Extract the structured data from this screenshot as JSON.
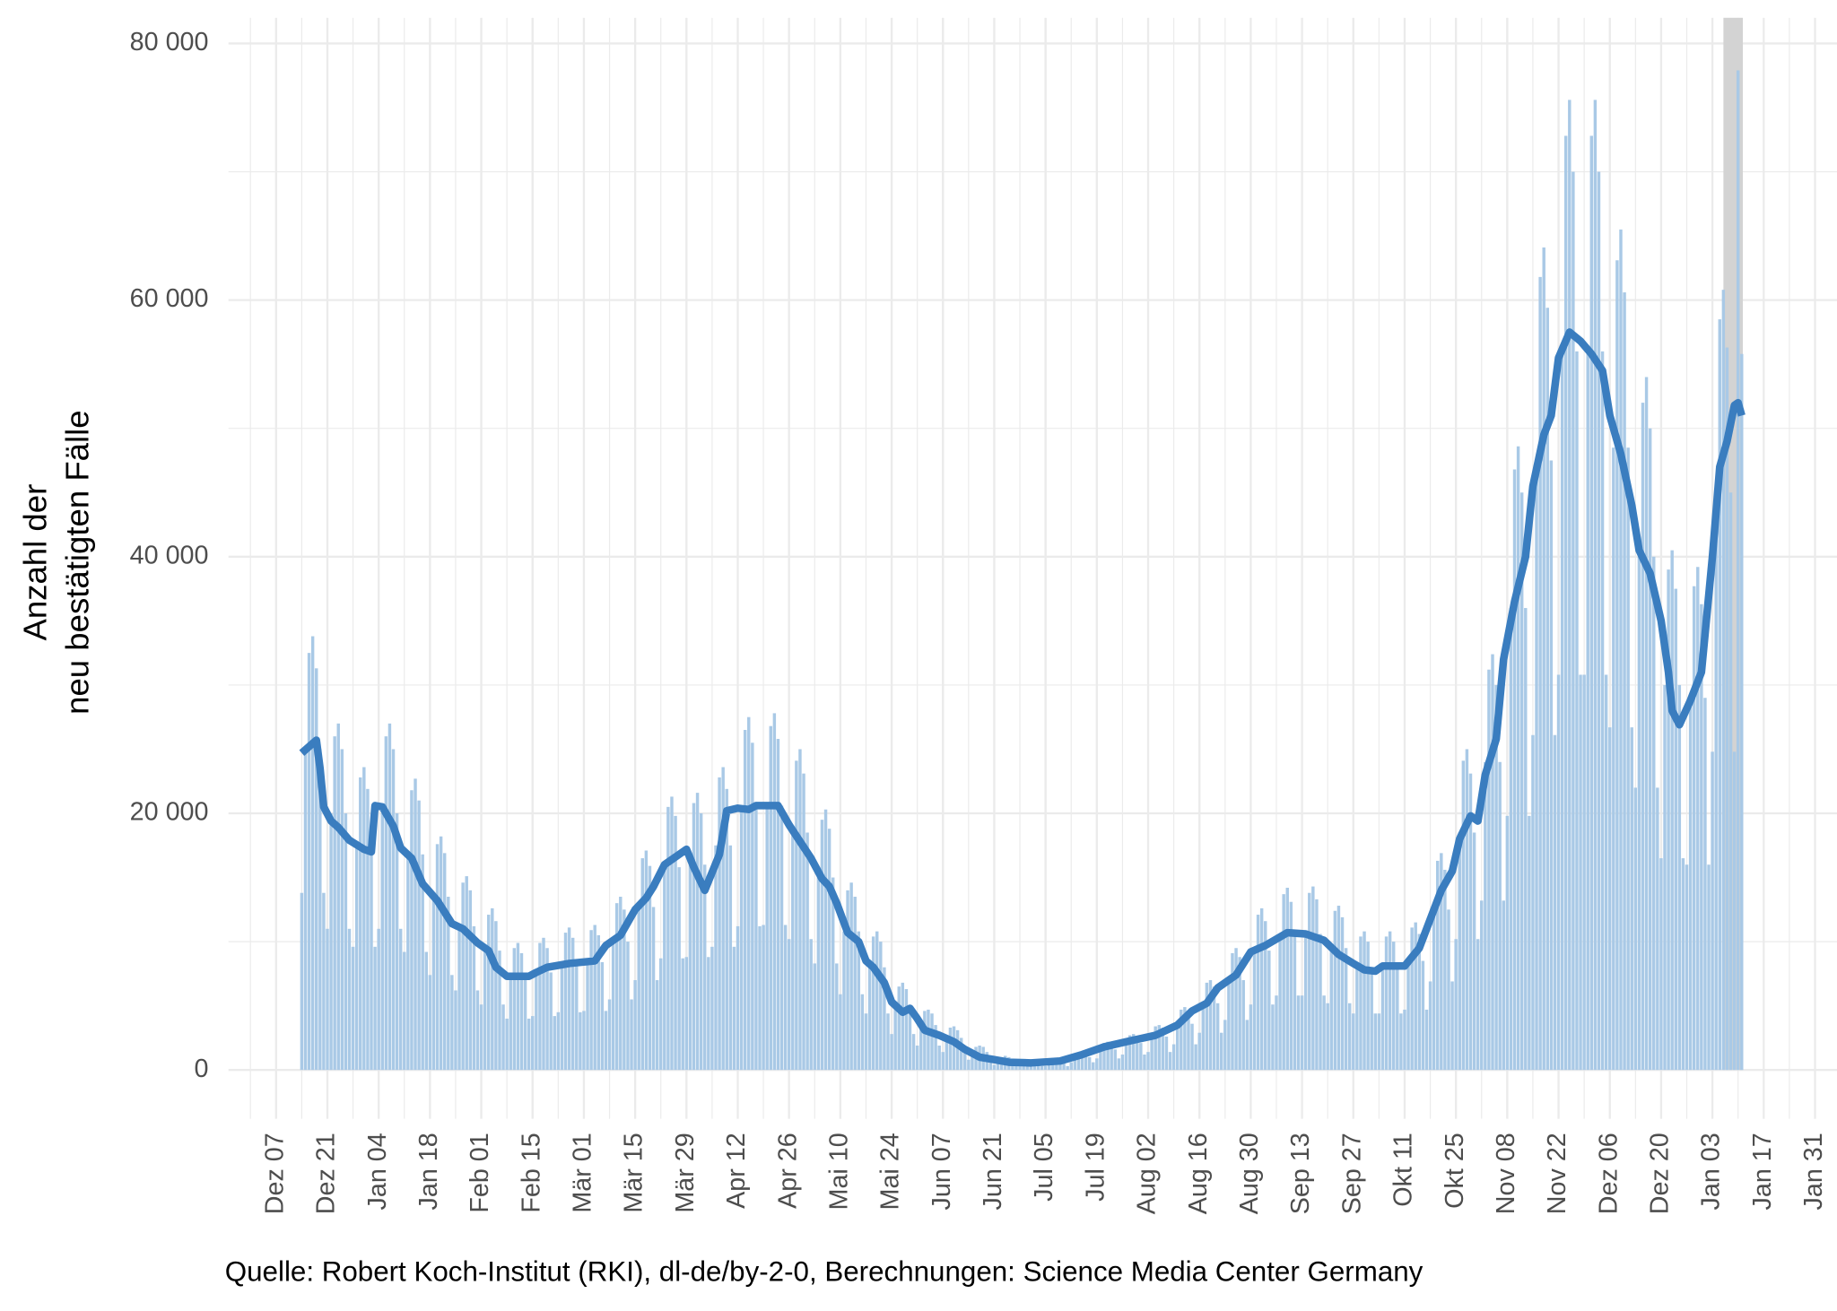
{
  "chart_data": {
    "type": "bar",
    "y_label": [
      "Anzahl der",
      "neu bestätigten Fälle"
    ],
    "caption": "Quelle: Robert Koch-Institut (RKI), dl-de/by-2-0, Berechnungen: Science Media Center Germany",
    "xlim": [
      -13,
      426
    ],
    "xticks": [
      {
        "value": 0,
        "label": "Dez 07"
      },
      {
        "value": 14,
        "label": "Dez 21"
      },
      {
        "value": 28,
        "label": "Jan 04"
      },
      {
        "value": 42,
        "label": "Jan 18"
      },
      {
        "value": 56,
        "label": "Feb 01"
      },
      {
        "value": 70,
        "label": "Feb 15"
      },
      {
        "value": 84,
        "label": "Mär 01"
      },
      {
        "value": 98,
        "label": "Mär 15"
      },
      {
        "value": 112,
        "label": "Mär 29"
      },
      {
        "value": 126,
        "label": "Apr 12"
      },
      {
        "value": 140,
        "label": "Apr 26"
      },
      {
        "value": 154,
        "label": "Mai 10"
      },
      {
        "value": 168,
        "label": "Mai 24"
      },
      {
        "value": 182,
        "label": "Jun 07"
      },
      {
        "value": 196,
        "label": "Jun 21"
      },
      {
        "value": 210,
        "label": "Jul 05"
      },
      {
        "value": 224,
        "label": "Jul 19"
      },
      {
        "value": 238,
        "label": "Aug 02"
      },
      {
        "value": 252,
        "label": "Aug 16"
      },
      {
        "value": 266,
        "label": "Aug 30"
      },
      {
        "value": 280,
        "label": "Sep 13"
      },
      {
        "value": 294,
        "label": "Sep 27"
      },
      {
        "value": 308,
        "label": "Okt 11"
      },
      {
        "value": 322,
        "label": "Okt 25"
      },
      {
        "value": 336,
        "label": "Nov 08"
      },
      {
        "value": 350,
        "label": "Nov 22"
      },
      {
        "value": 364,
        "label": "Dez 06"
      },
      {
        "value": 378,
        "label": "Dez 20"
      },
      {
        "value": 392,
        "label": "Jan 03"
      },
      {
        "value": 406,
        "label": "Jan 17"
      },
      {
        "value": 420,
        "label": "Jan 31"
      }
    ],
    "ylim": [
      -3800,
      82000
    ],
    "yticks": [
      0,
      {
        "value": 20000,
        "label": "20 000"
      },
      {
        "value": 40000,
        "label": "40 000"
      },
      {
        "value": 60000,
        "label": "60 000"
      },
      {
        "value": 80000,
        "label": "80 000"
      }
    ],
    "grid": true,
    "shaded_x": [
      395,
      400.3
    ],
    "shaded_color": "#d3d3d3",
    "x": [
      7,
      8,
      9,
      10,
      11,
      12,
      13,
      14,
      15,
      16,
      17,
      18,
      19,
      20,
      21,
      22,
      23,
      24,
      25,
      26,
      27,
      28,
      29,
      30,
      31,
      32,
      33,
      34,
      35,
      36,
      37,
      38,
      39,
      40,
      41,
      42,
      43,
      44,
      45,
      46,
      47,
      48,
      49,
      50,
      51,
      52,
      53,
      54,
      55,
      56,
      57,
      58,
      59,
      60,
      61,
      62,
      63,
      64,
      65,
      66,
      67,
      68,
      69,
      70,
      71,
      72,
      73,
      74,
      75,
      76,
      77,
      78,
      79,
      80,
      81,
      82,
      83,
      84,
      85,
      86,
      87,
      88,
      89,
      90,
      91,
      92,
      93,
      94,
      95,
      96,
      97,
      98,
      99,
      100,
      101,
      102,
      103,
      104,
      105,
      106,
      107,
      108,
      109,
      110,
      111,
      112,
      113,
      114,
      115,
      116,
      117,
      118,
      119,
      120,
      121,
      122,
      123,
      124,
      125,
      126,
      127,
      128,
      129,
      130,
      131,
      132,
      133,
      134,
      135,
      136,
      137,
      138,
      139,
      140,
      141,
      142,
      143,
      144,
      145,
      146,
      147,
      148,
      149,
      150,
      151,
      152,
      153,
      154,
      155,
      156,
      157,
      158,
      159,
      160,
      161,
      162,
      163,
      164,
      165,
      166,
      167,
      168,
      169,
      170,
      171,
      172,
      173,
      174,
      175,
      176,
      177,
      178,
      179,
      180,
      181,
      182,
      183,
      184,
      185,
      186,
      187,
      188,
      189,
      190,
      191,
      192,
      193,
      194,
      195,
      196,
      197,
      198,
      199,
      200,
      201,
      202,
      203,
      204,
      205,
      206,
      207,
      208,
      209,
      210,
      211,
      212,
      213,
      214,
      215,
      216,
      217,
      218,
      219,
      220,
      221,
      222,
      223,
      224,
      225,
      226,
      227,
      228,
      229,
      230,
      231,
      232,
      233,
      234,
      235,
      236,
      237,
      238,
      239,
      240,
      241,
      242,
      243,
      244,
      245,
      246,
      247,
      248,
      249,
      250,
      251,
      252,
      253,
      254,
      255,
      256,
      257,
      258,
      259,
      260,
      261,
      262,
      263,
      264,
      265,
      266,
      267,
      268,
      269,
      270,
      271,
      272,
      273,
      274,
      275,
      276,
      277,
      278,
      279,
      280,
      281,
      282,
      283,
      284,
      285,
      286,
      287,
      288,
      289,
      290,
      291,
      292,
      293,
      294,
      295,
      296,
      297,
      298,
      299,
      300,
      301,
      302,
      303,
      304,
      305,
      306,
      307,
      308,
      309,
      310,
      311,
      312,
      313,
      314,
      315,
      316,
      317,
      318,
      319,
      320,
      321,
      322,
      323,
      324,
      325,
      326,
      327,
      328,
      329,
      330,
      331,
      332,
      333,
      334,
      335,
      336,
      337,
      338,
      339,
      340,
      341,
      342,
      343,
      344,
      345,
      346,
      347,
      348,
      349,
      350,
      351,
      352,
      353,
      354,
      355,
      356,
      357,
      358,
      359,
      360,
      361,
      362,
      363,
      364,
      365,
      366,
      367,
      368,
      369,
      370,
      371,
      372,
      373,
      374,
      375,
      376,
      377,
      378,
      379,
      380,
      381,
      382,
      383,
      384,
      385,
      386,
      387,
      388,
      389,
      390,
      391,
      392,
      393,
      394,
      395,
      396,
      397,
      398,
      399,
      400
    ],
    "series": [
      {
        "type": "bar",
        "color": "#a9c9e6",
        "values": [
          13800,
          25000,
          32500,
          33800,
          31300,
          25000,
          13800,
          11000,
          20000,
          26000,
          27000,
          25000,
          20000,
          11000,
          9600,
          17500,
          22800,
          23600,
          21900,
          17500,
          9600,
          11000,
          20000,
          26000,
          27000,
          25000,
          20000,
          11000,
          9200,
          16800,
          21800,
          22700,
          21000,
          16800,
          9200,
          7400,
          13500,
          17600,
          18200,
          16900,
          13500,
          7400,
          6200,
          11200,
          14600,
          15100,
          14000,
          11200,
          6200,
          5100,
          9300,
          12100,
          12600,
          11600,
          9300,
          5100,
          4000,
          7300,
          9500,
          9900,
          9100,
          7300,
          4000,
          4200,
          7600,
          9900,
          10300,
          9500,
          7600,
          4200,
          4500,
          8200,
          10700,
          11100,
          10300,
          8200,
          4500,
          4600,
          8400,
          10900,
          11300,
          10500,
          8400,
          4600,
          5500,
          10000,
          13000,
          13500,
          12500,
          10000,
          5500,
          7000,
          12700,
          16500,
          17100,
          15900,
          12700,
          7000,
          8700,
          15800,
          20500,
          21300,
          19800,
          15800,
          8700,
          8800,
          16000,
          20800,
          21600,
          20000,
          16000,
          8800,
          9600,
          17500,
          22800,
          23600,
          21900,
          17500,
          9600,
          11200,
          20400,
          26500,
          27500,
          25500,
          20400,
          11200,
          11300,
          20600,
          26800,
          27800,
          25800,
          20600,
          11300,
          10200,
          18500,
          24100,
          25000,
          23100,
          18500,
          10200,
          8300,
          15000,
          19500,
          20300,
          18800,
          15000,
          8300,
          5900,
          10800,
          14000,
          14600,
          13500,
          10800,
          5900,
          4400,
          8000,
          10400,
          10800,
          10000,
          8000,
          4400,
          2800,
          5000,
          6500,
          6800,
          6300,
          5000,
          2800,
          1900,
          3500,
          4600,
          4700,
          4400,
          3500,
          1900,
          1400,
          2500,
          3300,
          3400,
          3100,
          2500,
          1400,
          800,
          1400,
          1800,
          1900,
          1800,
          1400,
          800,
          400,
          800,
          1000,
          1100,
          1000,
          800,
          400,
          300,
          600,
          700,
          800,
          700,
          600,
          300,
          300,
          600,
          800,
          800,
          800,
          600,
          300,
          600,
          1000,
          1300,
          1400,
          1300,
          1000,
          600,
          900,
          1600,
          2100,
          2200,
          2000,
          1600,
          900,
          1200,
          2100,
          2700,
          2800,
          2600,
          2100,
          1200,
          1400,
          2600,
          3400,
          3500,
          3300,
          2600,
          1400,
          2000,
          3600,
          4700,
          4900,
          4500,
          3600,
          2000,
          2900,
          5200,
          6800,
          7000,
          6500,
          5200,
          2900,
          3900,
          7000,
          9100,
          9500,
          8800,
          7000,
          3900,
          5100,
          9300,
          12100,
          12600,
          11600,
          9300,
          5100,
          5800,
          10500,
          13700,
          14200,
          13100,
          10500,
          5800,
          5800,
          10600,
          13800,
          14300,
          13300,
          10600,
          5800,
          5200,
          9500,
          12400,
          12800,
          11900,
          9500,
          5200,
          4400,
          8000,
          10400,
          10800,
          10000,
          8000,
          4400,
          4400,
          8000,
          10400,
          10800,
          10000,
          8000,
          4400,
          4700,
          8500,
          11100,
          11500,
          10600,
          8500,
          4700,
          6900,
          12500,
          16300,
          16900,
          15600,
          12500,
          6900,
          10200,
          18500,
          24100,
          25000,
          23100,
          18500,
          10200,
          13200,
          24000,
          31200,
          32400,
          30000,
          24000,
          13200,
          19800,
          36000,
          46800,
          48600,
          45000,
          36000,
          19800,
          26100,
          47500,
          61800,
          64100,
          59400,
          47500,
          26100,
          30800,
          56000,
          72800,
          75600,
          70000,
          56000,
          30800,
          30800,
          56000,
          72800,
          75600,
          70000,
          56000,
          30800,
          26700,
          48500,
          63100,
          65500,
          60600,
          48500,
          26700,
          22000,
          40000,
          52000,
          54000,
          50000,
          40000,
          22000,
          16500,
          30000,
          39000,
          40500,
          37500,
          30000,
          16500,
          16000,
          29000,
          37700,
          39200,
          36300,
          29000,
          16000,
          24800,
          45000,
          58500,
          60800,
          56300,
          45000,
          24800,
          77900,
          55800
        ]
      },
      {
        "type": "line",
        "color": "#3a7dbf",
        "x": [
          7,
          9,
          11,
          12,
          13,
          15,
          17,
          20,
          24,
          26,
          27,
          29,
          32,
          34,
          37,
          40,
          44,
          48,
          51,
          55,
          58,
          60,
          63,
          69,
          71,
          74,
          80,
          87,
          90,
          94,
          98,
          101,
          103,
          106,
          110,
          112,
          114,
          117,
          119,
          121,
          123,
          126,
          129,
          131,
          137,
          140,
          143,
          146,
          149,
          151,
          153,
          156,
          159,
          161,
          163,
          166,
          168,
          171,
          173,
          175,
          177,
          181,
          185,
          188,
          192,
          196,
          200,
          206,
          214,
          220,
          226,
          232,
          240,
          246,
          250,
          254,
          257,
          262,
          266,
          270,
          276,
          281,
          286,
          290,
          294,
          297,
          300,
          302,
          308,
          312,
          314,
          318,
          321,
          323,
          326,
          328,
          330,
          333,
          335,
          338,
          341,
          343,
          346,
          348,
          350,
          353,
          356,
          359,
          362,
          364,
          367,
          370,
          372,
          375,
          378,
          380,
          381,
          383,
          386,
          389,
          390,
          392,
          394,
          396,
          398,
          399,
          400
        ],
        "values": [
          24700,
          25200,
          25700,
          23500,
          20500,
          19400,
          18900,
          17900,
          17200,
          17000,
          20600,
          20500,
          19000,
          17300,
          16500,
          14500,
          13200,
          11400,
          11000,
          9900,
          9300,
          8000,
          7300,
          7300,
          7600,
          8000,
          8300,
          8500,
          9700,
          10500,
          12500,
          13400,
          14300,
          16000,
          16800,
          17200,
          15800,
          14000,
          15400,
          16800,
          20200,
          20400,
          20300,
          20600,
          20600,
          19100,
          17800,
          16500,
          14900,
          14300,
          13000,
          10700,
          10000,
          8500,
          8000,
          6800,
          5300,
          4500,
          4800,
          4000,
          3100,
          2700,
          2200,
          1600,
          1000,
          800,
          600,
          550,
          700,
          1200,
          1800,
          2200,
          2700,
          3500,
          4600,
          5200,
          6400,
          7400,
          9200,
          9700,
          10700,
          10600,
          10100,
          9000,
          8300,
          7800,
          7700,
          8100,
          8100,
          9500,
          11000,
          14000,
          15500,
          18000,
          19800,
          19400,
          23000,
          25800,
          32000,
          36500,
          40000,
          45500,
          49500,
          51000,
          55500,
          57500,
          56800,
          55800,
          54500,
          51000,
          48000,
          44000,
          40500,
          38700,
          35000,
          31000,
          28000,
          26900,
          28800,
          31000,
          34000,
          40000,
          47000,
          49000,
          51800,
          52000,
          51000
        ]
      }
    ]
  }
}
